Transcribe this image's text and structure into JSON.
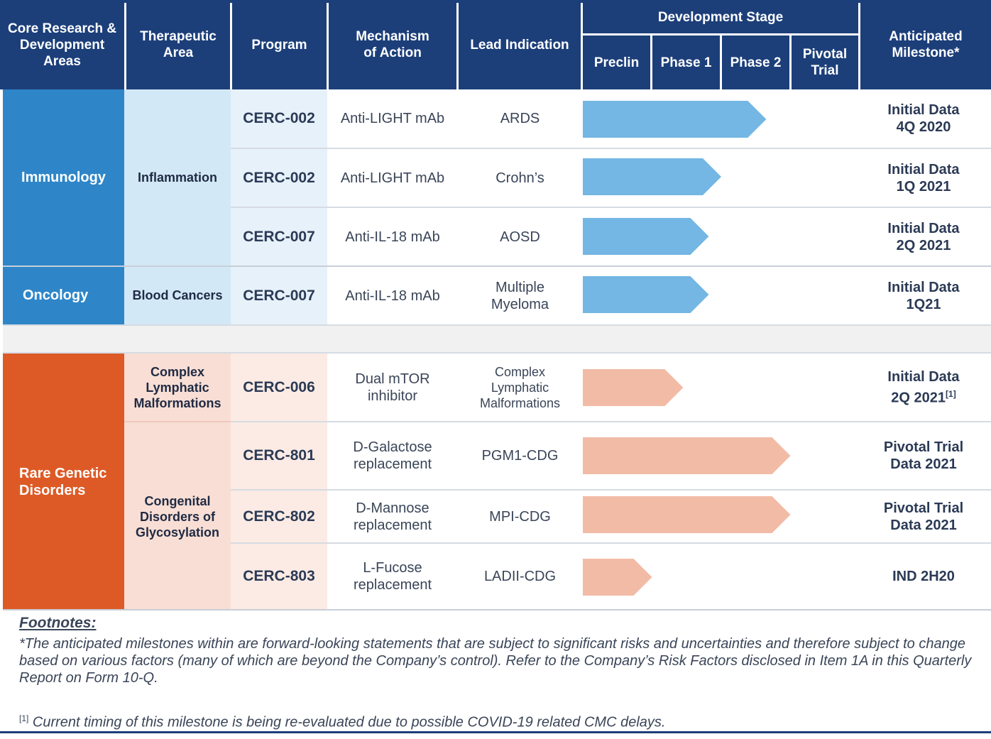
{
  "header": {
    "col_area": "Core Research & Development Areas",
    "col_therapeutic": "Therapeutic Area",
    "col_program": "Program",
    "col_mechanism": "Mechanism of Action",
    "col_indication": "Lead Indication",
    "dev_stage": "Development Stage",
    "stage_preclin": "Preclin",
    "stage_phase1": "Phase 1",
    "stage_phase2": "Phase 2",
    "stage_pivotal": "Pivotal Trial",
    "col_milestone": "Anticipated Milestone*"
  },
  "areas": {
    "immunology": "Immunology",
    "oncology": "Oncology",
    "rare": "Rare Genetic Disorders"
  },
  "therapeutic": {
    "inflammation": "Inflammation",
    "blood": "Blood Cancers",
    "clm": "Complex Lymphatic Malformations",
    "cdg": "Congenital Disorders of Glycosylation"
  },
  "colors": {
    "header": "#1c3f7a",
    "immunology": "#2e86c8",
    "rare": "#dd5a26",
    "arrow_blue": "#74b6e4",
    "arrow_peach": "#f2bba6"
  },
  "rows": [
    {
      "program": "CERC-002",
      "mechanism": "Anti-LIGHT mAb",
      "indication": "ARDS",
      "milestone1": "Initial Data",
      "milestone2": "4Q 2020",
      "progress_stages": 2.65
    },
    {
      "program": "CERC-002",
      "mechanism": "Anti-LIGHT mAb",
      "indication": "Crohn’s",
      "milestone1": "Initial Data",
      "milestone2": "1Q 2021",
      "progress_stages": 2.0
    },
    {
      "program": "CERC-007",
      "mechanism": "Anti-IL-18 mAb",
      "indication": "AOSD",
      "milestone1": "Initial Data",
      "milestone2": "2Q 2021",
      "progress_stages": 1.82
    },
    {
      "program": "CERC-007",
      "mechanism": "Anti-IL-18 mAb",
      "indication": "Multiple Myeloma",
      "milestone1": "Initial Data",
      "milestone2": "1Q21",
      "progress_stages": 1.82
    },
    {
      "program": "CERC-006",
      "mechanism": "Dual mTOR inhibitor",
      "indication": "Complex Lymphatic Malformations",
      "milestone1": "Initial Data",
      "milestone2": "2Q 2021",
      "milestone_sup": "[1]",
      "progress_stages": 1.45
    },
    {
      "program": "CERC-801",
      "mechanism": "D-Galactose replacement",
      "indication": "PGM1-CDG",
      "milestone1": "Pivotal Trial",
      "milestone2": "Data 2021",
      "progress_stages": 3.0
    },
    {
      "program": "CERC-802",
      "mechanism": "D-Mannose replacement",
      "indication": "MPI-CDG",
      "milestone1": "Pivotal Trial",
      "milestone2": "Data 2021",
      "progress_stages": 3.0
    },
    {
      "program": "CERC-803",
      "mechanism": "L-Fucose replacement",
      "indication": "LADII-CDG",
      "milestone1": "IND 2H20",
      "milestone2": "",
      "progress_stages": 1.0
    }
  ],
  "footnotes": {
    "title": "Footnotes:",
    "note1": "*The anticipated milestones within are forward-looking statements that are subject to significant risks and uncertainties and therefore subject to change based on various factors (many of which are beyond the Company’s control).  Refer to the Company’s Risk Factors disclosed in Item 1A in this Quarterly Report on Form 10-Q.",
    "note2_marker": "[1]",
    "note2": "Current timing of this milestone is being re-evaluated due to possible COVID-19 related CMC delays."
  }
}
